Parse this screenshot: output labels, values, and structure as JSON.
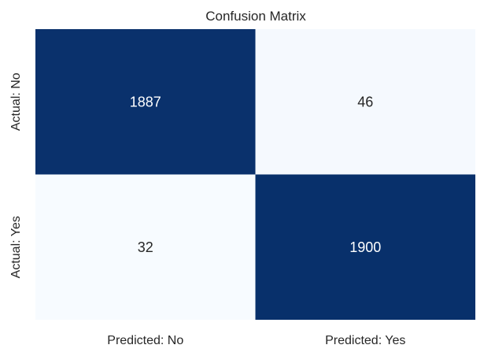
{
  "chart_data": {
    "type": "heatmap",
    "title": "Confusion Matrix",
    "xlabel": "",
    "ylabel": "",
    "x_categories": [
      "Predicted: No",
      "Predicted: Yes"
    ],
    "y_categories": [
      "Actual: No",
      "Actual: Yes"
    ],
    "values": [
      [
        1887,
        46
      ],
      [
        32,
        1900
      ]
    ],
    "colormap": "Blues",
    "colorbar": false,
    "grid": false,
    "colors": {
      "low": "#f7fbff",
      "high": "#08306b",
      "text_on_dark": "#ffffff",
      "text_on_light": "#262626"
    }
  }
}
